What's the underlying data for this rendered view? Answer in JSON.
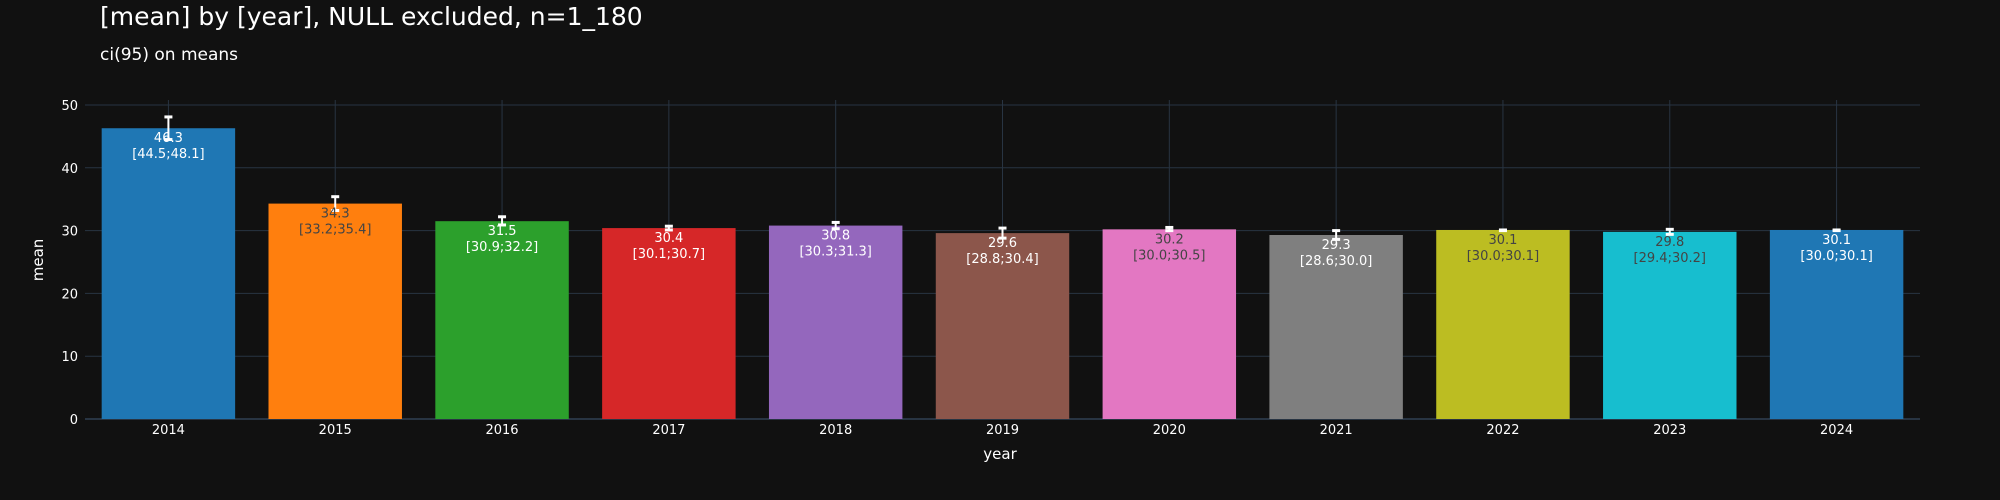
{
  "chart_data": {
    "type": "bar",
    "title": "[mean] by [year], NULL excluded, n=1_180",
    "subtitle": "ci(95) on means",
    "xlabel": "year",
    "ylabel": "mean",
    "ylim": [
      0,
      50
    ],
    "yticks": [
      "0",
      "10",
      "20",
      "30",
      "40",
      "50"
    ],
    "ytick_values": [
      0,
      10,
      20,
      30,
      40,
      50
    ],
    "grid": true,
    "categories": [
      "2014",
      "2015",
      "2016",
      "2017",
      "2018",
      "2019",
      "2020",
      "2021",
      "2022",
      "2023",
      "2024"
    ],
    "values": [
      46.3,
      34.3,
      31.5,
      30.4,
      30.8,
      29.6,
      30.2,
      29.3,
      30.1,
      29.8,
      30.1
    ],
    "ci_low": [
      44.5,
      33.2,
      30.9,
      30.1,
      30.3,
      28.8,
      30.0,
      28.6,
      30.0,
      29.4,
      30.0
    ],
    "ci_high": [
      48.1,
      35.4,
      32.2,
      30.7,
      31.3,
      30.4,
      30.5,
      30.0,
      30.1,
      30.2,
      30.1
    ],
    "value_labels": [
      "46.3",
      "34.3",
      "31.5",
      "30.4",
      "30.8",
      "29.6",
      "30.2",
      "29.3",
      "30.1",
      "29.8",
      "30.1"
    ],
    "ci_labels": [
      "[44.5;48.1]",
      "[33.2;35.4]",
      "[30.9;32.2]",
      "[30.1;30.7]",
      "[30.3;31.3]",
      "[28.8;30.4]",
      "[30.0;30.5]",
      "[28.6;30.0]",
      "[30.0;30.1]",
      "[29.4;30.2]",
      "[30.0;30.1]"
    ],
    "colors": [
      "#1f77b4",
      "#ff7f0e",
      "#2ca02c",
      "#d62728",
      "#9467bd",
      "#8c564b",
      "#e377c2",
      "#7f7f7f",
      "#bcbd22",
      "#17becf",
      "#1f77b4"
    ],
    "label_colors": [
      "#ffffff",
      "#444444",
      "#ffffff",
      "#ffffff",
      "#ffffff",
      "#ffffff",
      "#444444",
      "#ffffff",
      "#444444",
      "#444444",
      "#ffffff"
    ],
    "background": "#111111",
    "grid_color": "#283442",
    "errorbar_color": "#ffffff"
  }
}
